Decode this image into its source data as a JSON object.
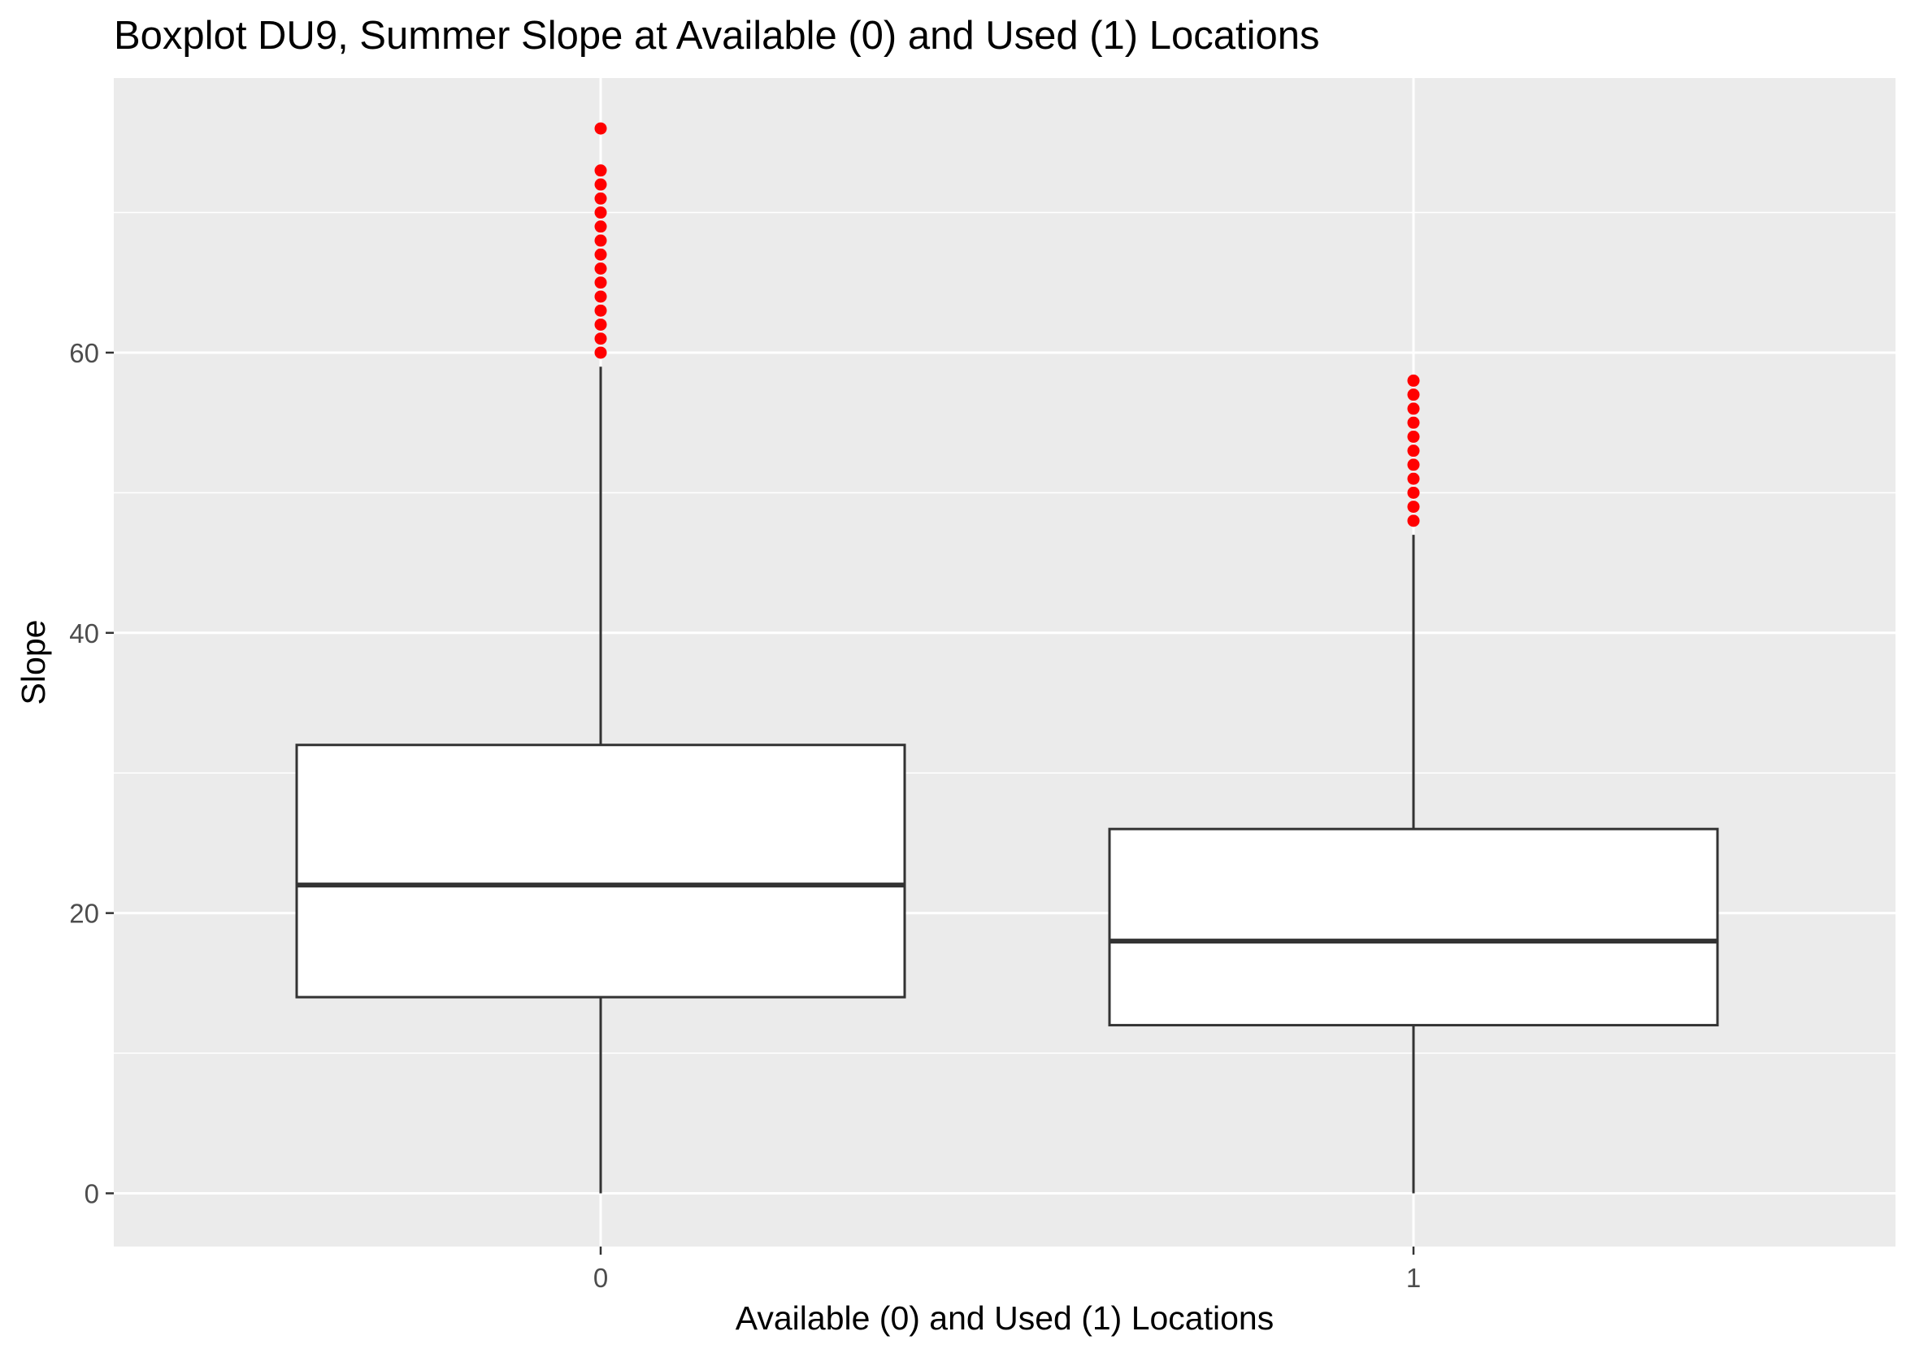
{
  "chart_data": {
    "type": "boxplot",
    "title": "Boxplot DU9, Summer Slope at Available (0) and Used (1) Locations",
    "xlabel": "Available (0) and Used (1) Locations",
    "ylabel": "Slope",
    "categories": [
      "0",
      "1"
    ],
    "ylim": [
      -3.8,
      79.6
    ],
    "y_ticks": [
      0,
      20,
      40,
      60
    ],
    "grid": true,
    "legend": "none",
    "boxes": [
      {
        "category": "0",
        "whisker_low": 0,
        "q1": 14,
        "median": 22,
        "q3": 32,
        "whisker_high": 59,
        "outliers": [
          60,
          61,
          62,
          63,
          64,
          65,
          66,
          67,
          68,
          69,
          70,
          71,
          72,
          73,
          76
        ]
      },
      {
        "category": "1",
        "whisker_low": 0,
        "q1": 12,
        "median": 18,
        "q3": 26,
        "whisker_high": 47,
        "outliers": [
          48,
          49,
          50,
          51,
          52,
          53,
          54,
          55,
          56,
          57,
          58
        ]
      }
    ],
    "colors": {
      "panel_background": "#ebebeb",
      "grid": "#ffffff",
      "box_fill": "#ffffff",
      "box_line": "#333333",
      "outlier": "#ff0000"
    }
  }
}
